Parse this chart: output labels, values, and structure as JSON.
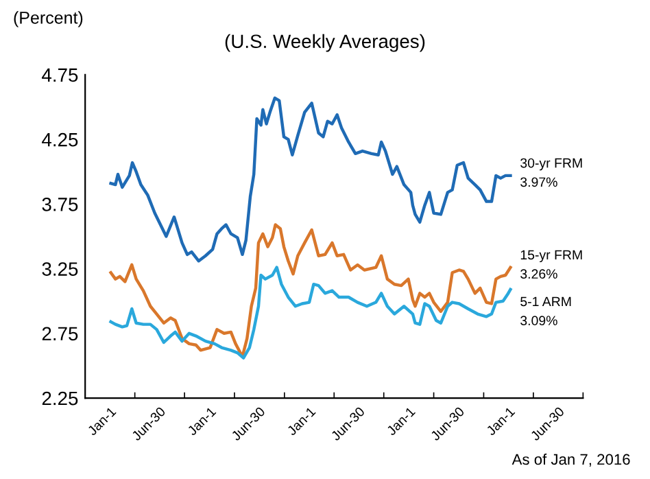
{
  "chart_data": {
    "type": "line",
    "subtitle": "(U.S. Weekly Averages)",
    "ylabel": "(Percent)",
    "annotations": [
      "As of Jan 7, 2016"
    ],
    "xlim": [
      "2011-10-02",
      "2016-09-29"
    ],
    "xticks": [
      {
        "value": "2012-01-01",
        "label": "Jan-1"
      },
      {
        "value": "2012-06-30",
        "label": "Jun-30"
      },
      {
        "value": "2013-01-01",
        "label": "Jan-1"
      },
      {
        "value": "2013-06-30",
        "label": "Jun-30"
      },
      {
        "value": "2014-01-01",
        "label": "Jan-1"
      },
      {
        "value": "2014-06-30",
        "label": "Jun-30"
      },
      {
        "value": "2015-01-01",
        "label": "Jan-1"
      },
      {
        "value": "2015-06-30",
        "label": "Jun-30"
      },
      {
        "value": "2016-01-01",
        "label": "Jan-1"
      },
      {
        "value": "2016-06-30",
        "label": "Jun-30"
      },
      {
        "value": "2012-04-01",
        "label": null
      },
      {
        "value": "2012-09-30",
        "label": null
      },
      {
        "value": "2013-04-01",
        "label": null
      },
      {
        "value": "2013-10-01",
        "label": null
      },
      {
        "value": "2014-04-01",
        "label": null
      },
      {
        "value": "2014-09-30",
        "label": null
      },
      {
        "value": "2015-04-01",
        "label": null
      },
      {
        "value": "2015-10-01",
        "label": null
      },
      {
        "value": "2016-03-31",
        "label": null
      },
      {
        "value": "2016-09-29",
        "label": null
      }
    ],
    "ylim": [
      2.25,
      4.75
    ],
    "yticks": [
      2.25,
      2.75,
      3.25,
      3.75,
      4.25,
      4.75
    ],
    "series": [
      {
        "name": "30-yr FRM",
        "color": "#1f6bb5",
        "x": [
          "2012-01-04",
          "2012-01-21",
          "2012-01-30",
          "2012-02-15",
          "2012-03-12",
          "2012-03-23",
          "2012-04-06",
          "2012-04-23",
          "2012-05-18",
          "2012-06-13",
          "2012-07-25",
          "2012-08-23",
          "2012-09-21",
          "2012-10-10",
          "2012-10-26",
          "2012-11-21",
          "2012-12-16",
          "2013-01-11",
          "2013-01-27",
          "2013-02-13",
          "2013-03-01",
          "2013-03-19",
          "2013-04-12",
          "2013-04-30",
          "2013-05-13",
          "2013-05-29",
          "2013-06-11",
          "2013-06-22",
          "2013-07-07",
          "2013-07-14",
          "2013-07-27",
          "2013-08-09",
          "2013-08-27",
          "2013-09-12",
          "2013-09-29",
          "2013-10-15",
          "2013-10-30",
          "2013-11-19",
          "2013-12-14",
          "2014-01-09",
          "2014-02-03",
          "2014-02-20",
          "2014-03-08",
          "2014-03-25",
          "2014-04-12",
          "2014-04-28",
          "2014-05-24",
          "2014-06-18",
          "2014-07-14",
          "2014-08-16",
          "2014-09-10",
          "2014-09-21",
          "2014-10-06",
          "2014-11-01",
          "2014-11-17",
          "2014-12-13",
          "2015-01-07",
          "2015-01-14",
          "2015-01-23",
          "2015-02-09",
          "2015-02-27",
          "2015-03-16",
          "2015-04-01",
          "2015-04-27",
          "2015-05-22",
          "2015-06-08",
          "2015-06-26",
          "2015-07-19",
          "2015-08-05",
          "2015-08-30",
          "2015-09-18",
          "2015-10-11",
          "2015-10-30",
          "2015-11-15",
          "2015-12-02",
          "2015-12-20",
          "2016-01-07"
        ],
        "values": [
          3.91,
          3.9,
          3.98,
          3.88,
          3.97,
          4.07,
          4.0,
          3.9,
          3.82,
          3.68,
          3.5,
          3.65,
          3.45,
          3.36,
          3.38,
          3.31,
          3.35,
          3.4,
          3.52,
          3.56,
          3.59,
          3.52,
          3.49,
          3.36,
          3.47,
          3.81,
          3.98,
          4.41,
          4.36,
          4.48,
          4.37,
          4.46,
          4.57,
          4.55,
          4.27,
          4.25,
          4.13,
          4.28,
          4.46,
          4.53,
          4.3,
          4.27,
          4.39,
          4.37,
          4.44,
          4.34,
          4.23,
          4.14,
          4.16,
          4.14,
          4.13,
          4.23,
          4.16,
          3.98,
          4.04,
          3.9,
          3.84,
          3.74,
          3.67,
          3.61,
          3.74,
          3.84,
          3.68,
          3.67,
          3.84,
          3.86,
          4.05,
          4.07,
          3.95,
          3.9,
          3.86,
          3.77,
          3.77,
          3.97,
          3.95,
          3.97,
          3.97
        ],
        "value_labels": [
          null,
          null,
          null,
          null,
          null,
          null,
          null,
          null,
          null,
          null,
          null,
          null,
          null,
          null,
          null,
          null,
          null,
          null,
          null,
          null,
          null,
          null,
          null,
          null,
          null,
          null,
          null,
          null,
          null,
          null,
          null,
          null,
          null,
          null,
          null,
          null,
          null,
          null,
          null,
          null,
          null,
          null,
          null,
          null,
          null,
          null,
          null,
          null,
          null,
          null,
          null,
          null,
          null,
          null,
          null,
          null,
          null,
          null,
          null,
          null,
          null,
          null,
          null,
          null,
          null,
          null,
          null,
          null,
          null,
          null,
          null,
          null,
          null,
          null,
          null,
          null,
          "3.97%"
        ]
      },
      {
        "name": "15-yr FRM",
        "color": "#d9772b",
        "x": [
          "2012-01-04",
          "2012-01-21",
          "2012-02-06",
          "2012-02-25",
          "2012-03-21",
          "2012-04-06",
          "2012-05-02",
          "2012-05-28",
          "2012-06-20",
          "2012-07-16",
          "2012-08-10",
          "2012-08-27",
          "2012-09-21",
          "2012-10-17",
          "2012-11-11",
          "2012-11-28",
          "2013-01-02",
          "2013-01-27",
          "2013-02-22",
          "2013-03-19",
          "2013-04-05",
          "2013-04-30",
          "2013-05-17",
          "2013-06-02",
          "2013-06-18",
          "2013-06-28",
          "2013-07-14",
          "2013-08-01",
          "2013-08-18",
          "2013-08-29",
          "2013-09-16",
          "2013-09-29",
          "2013-10-15",
          "2013-11-02",
          "2013-11-19",
          "2013-12-14",
          "2014-01-09",
          "2014-02-03",
          "2014-02-27",
          "2014-03-25",
          "2014-04-12",
          "2014-05-06",
          "2014-05-31",
          "2014-06-26",
          "2014-07-21",
          "2014-09-01",
          "2014-09-21",
          "2014-10-13",
          "2014-11-08",
          "2014-12-03",
          "2014-12-29",
          "2015-01-14",
          "2015-01-23",
          "2015-02-09",
          "2015-02-27",
          "2015-03-16",
          "2015-04-01",
          "2015-04-27",
          "2015-05-22",
          "2015-06-08",
          "2015-07-03",
          "2015-07-19",
          "2015-08-05",
          "2015-08-30",
          "2015-09-18",
          "2015-10-11",
          "2015-10-30",
          "2015-11-15",
          "2015-12-02",
          "2015-12-20",
          "2016-01-07"
        ],
        "values": [
          3.22,
          3.17,
          3.19,
          3.15,
          3.28,
          3.17,
          3.08,
          2.96,
          2.9,
          2.83,
          2.87,
          2.85,
          2.71,
          2.67,
          2.66,
          2.62,
          2.64,
          2.78,
          2.75,
          2.76,
          2.67,
          2.57,
          2.71,
          2.96,
          3.1,
          3.45,
          3.52,
          3.42,
          3.49,
          3.59,
          3.56,
          3.42,
          3.31,
          3.21,
          3.35,
          3.45,
          3.55,
          3.35,
          3.36,
          3.45,
          3.35,
          3.36,
          3.24,
          3.28,
          3.24,
          3.26,
          3.35,
          3.17,
          3.13,
          3.12,
          3.17,
          3.01,
          2.96,
          3.06,
          3.03,
          3.06,
          2.99,
          2.92,
          2.99,
          3.22,
          3.24,
          3.23,
          3.17,
          3.06,
          3.1,
          2.99,
          2.98,
          3.17,
          3.19,
          3.2,
          3.26
        ],
        "value_labels": [
          null,
          null,
          null,
          null,
          null,
          null,
          null,
          null,
          null,
          null,
          null,
          null,
          null,
          null,
          null,
          null,
          null,
          null,
          null,
          null,
          null,
          null,
          null,
          null,
          null,
          null,
          null,
          null,
          null,
          null,
          null,
          null,
          null,
          null,
          null,
          null,
          null,
          null,
          null,
          null,
          null,
          null,
          null,
          null,
          null,
          null,
          null,
          null,
          null,
          null,
          null,
          null,
          null,
          null,
          null,
          null,
          null,
          null,
          null,
          null,
          null,
          null,
          null,
          null,
          null,
          null,
          null,
          null,
          null,
          null,
          "3.26%"
        ]
      },
      {
        "name": "5-1 ARM",
        "color": "#2aa8dc",
        "x": [
          "2012-01-04",
          "2012-01-21",
          "2012-02-15",
          "2012-03-03",
          "2012-03-21",
          "2012-04-06",
          "2012-05-02",
          "2012-05-28",
          "2012-06-20",
          "2012-07-16",
          "2012-08-10",
          "2012-08-27",
          "2012-09-21",
          "2012-10-17",
          "2012-11-11",
          "2012-12-16",
          "2013-01-18",
          "2013-02-13",
          "2013-03-19",
          "2013-04-12",
          "2013-05-04",
          "2013-05-26",
          "2013-06-11",
          "2013-06-28",
          "2013-07-07",
          "2013-07-23",
          "2013-08-18",
          "2013-09-03",
          "2013-09-20",
          "2013-10-15",
          "2013-11-10",
          "2013-12-05",
          "2013-12-31",
          "2014-01-16",
          "2014-02-03",
          "2014-02-27",
          "2014-03-25",
          "2014-04-19",
          "2014-05-24",
          "2014-06-26",
          "2014-07-30",
          "2014-09-01",
          "2014-09-21",
          "2014-10-13",
          "2014-11-08",
          "2014-12-13",
          "2015-01-14",
          "2015-01-23",
          "2015-02-09",
          "2015-02-27",
          "2015-03-16",
          "2015-04-10",
          "2015-04-27",
          "2015-05-22",
          "2015-06-08",
          "2015-07-03",
          "2015-08-05",
          "2015-09-09",
          "2015-10-11",
          "2015-10-30",
          "2015-11-15",
          "2015-12-11",
          "2015-12-27",
          "2016-01-07"
        ],
        "values": [
          2.84,
          2.82,
          2.8,
          2.81,
          2.94,
          2.83,
          2.82,
          2.82,
          2.78,
          2.68,
          2.73,
          2.76,
          2.69,
          2.75,
          2.73,
          2.69,
          2.67,
          2.64,
          2.62,
          2.6,
          2.56,
          2.64,
          2.78,
          2.96,
          3.2,
          3.17,
          3.2,
          3.26,
          3.13,
          3.03,
          2.96,
          2.98,
          2.99,
          3.13,
          3.12,
          3.06,
          3.08,
          3.03,
          3.03,
          2.99,
          2.96,
          2.99,
          3.06,
          2.96,
          2.9,
          2.96,
          2.9,
          2.83,
          2.82,
          2.98,
          2.96,
          2.85,
          2.83,
          2.96,
          2.99,
          2.98,
          2.94,
          2.9,
          2.88,
          2.9,
          2.99,
          3.0,
          3.05,
          3.09
        ],
        "value_labels": [
          null,
          null,
          null,
          null,
          null,
          null,
          null,
          null,
          null,
          null,
          null,
          null,
          null,
          null,
          null,
          null,
          null,
          null,
          null,
          null,
          null,
          null,
          null,
          null,
          null,
          null,
          null,
          null,
          null,
          null,
          null,
          null,
          null,
          null,
          null,
          null,
          null,
          null,
          null,
          null,
          null,
          null,
          null,
          null,
          null,
          null,
          null,
          null,
          null,
          null,
          null,
          null,
          null,
          null,
          null,
          null,
          null,
          null,
          null,
          null,
          null,
          null,
          null,
          "3.09%"
        ]
      }
    ]
  }
}
